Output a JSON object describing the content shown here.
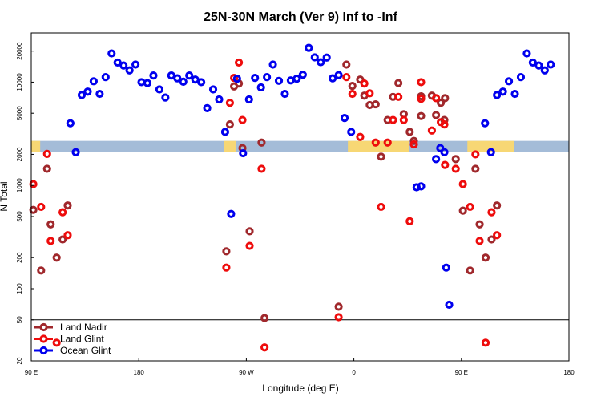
{
  "chart_data": {
    "type": "scatter",
    "title": "25N-30N March (Ver 9)   Inf to -Inf",
    "xlabel": "Longitude (deg E)",
    "ylabel": "N Total",
    "xlim": [
      90,
      450
    ],
    "ylim_log": [
      20,
      30000
    ],
    "yscale": "log",
    "x_ticks": [
      {
        "v": 90,
        "label": "90 E"
      },
      {
        "v": 162,
        "label": "180"
      },
      {
        "v": 234,
        "label": "90 W"
      },
      {
        "v": 306,
        "label": "0"
      },
      {
        "v": 378,
        "label": "90 E"
      },
      {
        "v": 450,
        "label": "180"
      }
    ],
    "y_ticks": [
      {
        "v": 20,
        "label": "20"
      },
      {
        "v": 50,
        "label": "50"
      },
      {
        "v": 100,
        "label": "100"
      },
      {
        "v": 200,
        "label": "200"
      },
      {
        "v": 500,
        "label": "500"
      },
      {
        "v": 1000,
        "label": "1000"
      },
      {
        "v": 2000,
        "label": "2000"
      },
      {
        "v": 5000,
        "label": "5000"
      },
      {
        "v": 10000,
        "label": "10000"
      },
      {
        "v": 20000,
        "label": "20000"
      }
    ],
    "reference_line": 50,
    "map_strip": {
      "y_range": [
        2100,
        2700
      ],
      "ocean_color": "#a4bcd8",
      "land_color": "#f7d774",
      "land_segments": [
        [
          90,
          96
        ],
        [
          219,
          227
        ],
        [
          302,
          343
        ],
        [
          382,
          413
        ]
      ]
    },
    "series": [
      {
        "name": "Land Nadir",
        "color": "#a0282c",
        "points": [
          [
            91.4,
            580
          ],
          [
            96.6,
            150
          ],
          [
            100.6,
            1450
          ],
          [
            103,
            420
          ],
          [
            107,
            200
          ],
          [
            111,
            300
          ],
          [
            114.4,
            640
          ],
          [
            220.6,
            230
          ],
          [
            223,
            3900
          ],
          [
            225.8,
            9100
          ],
          [
            229,
            9700
          ],
          [
            231.4,
            2300
          ],
          [
            236.2,
            360
          ],
          [
            244.2,
            2600
          ],
          [
            246.2,
            52
          ],
          [
            295.8,
            67
          ],
          [
            301,
            14800
          ],
          [
            305,
            9200
          ],
          [
            310.2,
            10600
          ],
          [
            313,
            7400
          ],
          [
            316.6,
            6000
          ],
          [
            320.6,
            6100
          ],
          [
            324.2,
            1900
          ],
          [
            328.6,
            4300
          ],
          [
            332.2,
            7200
          ],
          [
            335.8,
            9800
          ],
          [
            339.4,
            4900
          ],
          [
            343.4,
            3300
          ],
          [
            346.2,
            2700
          ],
          [
            351,
            7300
          ],
          [
            351,
            4700
          ],
          [
            358.2,
            7400
          ],
          [
            361,
            4800
          ],
          [
            364.2,
            6300
          ],
          [
            366.6,
            4300
          ],
          [
            367,
            7000
          ],
          [
            374.2,
            1800
          ],
          [
            379,
            570
          ],
          [
            383.8,
            150
          ],
          [
            387.4,
            1450
          ],
          [
            390.2,
            420
          ],
          [
            394.2,
            200
          ],
          [
            398.2,
            300
          ],
          [
            401.8,
            640
          ]
        ]
      },
      {
        "name": "Land Glint",
        "color": "#ee0c0c",
        "points": [
          [
            91.4,
            1030
          ],
          [
            96.6,
            620
          ],
          [
            100.6,
            2020
          ],
          [
            103,
            290
          ],
          [
            107,
            30
          ],
          [
            111,
            550
          ],
          [
            114.4,
            330
          ],
          [
            220.6,
            160
          ],
          [
            223,
            6300
          ],
          [
            225.8,
            11000
          ],
          [
            229,
            15500
          ],
          [
            231.4,
            4300
          ],
          [
            236.2,
            260
          ],
          [
            244.2,
            1450
          ],
          [
            246.2,
            27
          ],
          [
            295.8,
            53
          ],
          [
            301,
            11200
          ],
          [
            305,
            7700
          ],
          [
            310.2,
            2950
          ],
          [
            313,
            9700
          ],
          [
            316.6,
            7800
          ],
          [
            320.6,
            2600
          ],
          [
            324.2,
            620
          ],
          [
            328.6,
            2600
          ],
          [
            332.2,
            4300
          ],
          [
            335.8,
            7200
          ],
          [
            339.4,
            4300
          ],
          [
            343.4,
            450
          ],
          [
            346.2,
            2500
          ],
          [
            351,
            6900
          ],
          [
            351,
            10000
          ],
          [
            358.2,
            3400
          ],
          [
            361,
            7000
          ],
          [
            364.2,
            4100
          ],
          [
            366.6,
            3900
          ],
          [
            367,
            1580
          ],
          [
            374.2,
            1450
          ],
          [
            379,
            1030
          ],
          [
            383.8,
            620
          ],
          [
            387.4,
            2000
          ],
          [
            390.2,
            290
          ],
          [
            394.2,
            30
          ],
          [
            398.2,
            550
          ],
          [
            401.8,
            330
          ]
        ]
      },
      {
        "name": "Ocean Glint",
        "color": "#0000ee",
        "points": [
          [
            116.2,
            4000
          ],
          [
            119.8,
            2100
          ],
          [
            123.8,
            7500
          ],
          [
            127.8,
            8100
          ],
          [
            131.8,
            10200
          ],
          [
            135.8,
            7700
          ],
          [
            139.8,
            11200
          ],
          [
            143.8,
            19000
          ],
          [
            147.8,
            15500
          ],
          [
            151.8,
            14500
          ],
          [
            155.8,
            13000
          ],
          [
            159.8,
            14800
          ],
          [
            163.8,
            10000
          ],
          [
            167.8,
            9800
          ],
          [
            171.8,
            11600
          ],
          [
            175.8,
            8500
          ],
          [
            179.8,
            7100
          ],
          [
            183.8,
            11600
          ],
          [
            187.8,
            10900
          ],
          [
            191.8,
            10100
          ],
          [
            195.8,
            11600
          ],
          [
            199.8,
            10600
          ],
          [
            203.8,
            10000
          ],
          [
            207.8,
            5600
          ],
          [
            211.8,
            8500
          ],
          [
            215.8,
            6800
          ],
          [
            219.8,
            3300
          ],
          [
            223.8,
            530
          ],
          [
            227.8,
            10800
          ],
          [
            231.8,
            2050
          ],
          [
            235.8,
            6800
          ],
          [
            239.8,
            11000
          ],
          [
            243.8,
            8900
          ],
          [
            247.8,
            11200
          ],
          [
            251.8,
            14800
          ],
          [
            255.8,
            10300
          ],
          [
            259.8,
            7700
          ],
          [
            263.8,
            10400
          ],
          [
            267.8,
            10800
          ],
          [
            271.8,
            11800
          ],
          [
            275.8,
            21500
          ],
          [
            279.8,
            17400
          ],
          [
            283.8,
            15600
          ],
          [
            287.8,
            17300
          ],
          [
            291.8,
            10900
          ],
          [
            295.8,
            11700
          ],
          [
            299.8,
            4500
          ],
          [
            304.2,
            3300
          ],
          [
            348,
            960
          ],
          [
            351,
            980
          ],
          [
            361,
            1800
          ],
          [
            363.8,
            2300
          ],
          [
            366.6,
            2100
          ],
          [
            367.8,
            160
          ],
          [
            369.8,
            70
          ],
          [
            393.8,
            4000
          ],
          [
            397.8,
            2100
          ],
          [
            401.8,
            7500
          ],
          [
            405.8,
            8100
          ],
          [
            409.8,
            10200
          ],
          [
            413.8,
            7700
          ],
          [
            417.8,
            11200
          ],
          [
            421.8,
            19000
          ],
          [
            425.8,
            15500
          ],
          [
            429.8,
            14500
          ],
          [
            433.8,
            13000
          ],
          [
            437.8,
            14800
          ]
        ]
      }
    ]
  }
}
